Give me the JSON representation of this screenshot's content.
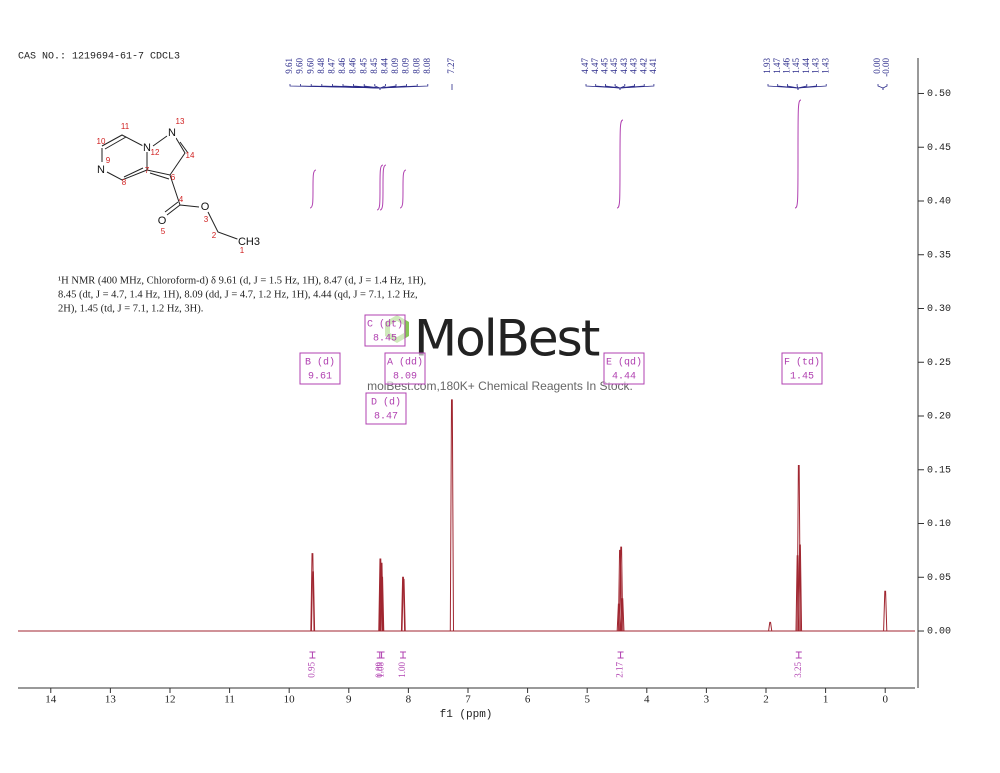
{
  "header": {
    "cas": "CAS NO.: 1219694-61-7 CDCL3"
  },
  "structure": {
    "atoms": [
      "N",
      "N",
      "N",
      "O",
      "O",
      "CH3"
    ],
    "numbers": [
      "1",
      "2",
      "3",
      "4",
      "5",
      "6",
      "7",
      "8",
      "9",
      "10",
      "11",
      "12",
      "13",
      "14"
    ]
  },
  "nmr_text": [
    "¹H NMR (400 MHz, Chloroform-d) δ 9.61 (d, J = 1.5 Hz, 1H), 8.47 (d, J = 1.4 Hz, 1H),",
    "8.45 (dt, J = 4.7, 1.4 Hz, 1H), 8.09 (dd, J = 4.7, 1.2 Hz, 1H), 4.44 (qd, J = 7.1, 1.2 Hz,",
    "2H), 1.45 (td, J = 7.1, 1.2 Hz, 3H)."
  ],
  "watermark": {
    "brand": "MolBest",
    "tagline": "molBest.com,180K+ Chemical Reagents In Stock."
  },
  "chart_data": {
    "type": "spectrum",
    "xlabel": "f1 (ppm)",
    "color": "#a02630",
    "xlim": [
      14.55,
      -0.5
    ],
    "xticks": [
      14,
      13,
      12,
      11,
      10,
      9,
      8,
      7,
      6,
      5,
      4,
      3,
      2,
      1,
      0
    ],
    "ylim": [
      -0.053,
      0.533
    ],
    "yticks": [
      {
        "value": 0,
        "label": "0.00"
      },
      0.05,
      {
        "value": 0.1,
        "label": "0.10"
      },
      0.15,
      {
        "value": 0.2,
        "label": "0.20"
      },
      0.25,
      {
        "value": 0.3,
        "label": "0.30"
      },
      0.35,
      {
        "value": 0.4,
        "label": "0.40"
      },
      0.45,
      {
        "value": 0.5,
        "label": "0.50"
      }
    ],
    "x": [
      9.61,
      9.6,
      8.47,
      8.46,
      8.45,
      8.44,
      8.09,
      8.08,
      7.27,
      4.47,
      4.45,
      4.43,
      4.41,
      1.93,
      1.47,
      1.45,
      1.43,
      0
    ],
    "values": [
      0.072,
      0.055,
      0.067,
      0.06,
      0.063,
      0.05,
      0.05,
      0.048,
      0.215,
      0.025,
      0.075,
      0.078,
      0.03,
      0.008,
      0.07,
      0.154,
      0.08,
      0.037
    ],
    "peak_label_groups": [
      [
        "9.61",
        "9.60",
        "9.60",
        "8.48",
        "8.47",
        "8.46",
        "8.46",
        "8.45",
        "8.45",
        "8.44",
        "8.09",
        "8.09",
        "8.08",
        "8.08"
      ],
      [
        "7.27"
      ],
      [
        "4.47",
        "4.47",
        "4.45",
        "4.45",
        "4.43",
        "4.43",
        "4.42",
        "4.41"
      ],
      [
        "1.93",
        "1.47",
        "1.46",
        "1.45",
        "1.44",
        "1.43",
        "1.43"
      ],
      [
        "0.00",
        "-0.00"
      ]
    ],
    "multiplets": [
      {
        "name": "B (d)",
        "shift": "9.61"
      },
      {
        "name": "C (dt)",
        "shift": "8.45"
      },
      {
        "name": "A (dd)",
        "shift": "8.09"
      },
      {
        "name": "D (d)",
        "shift": "8.47"
      },
      {
        "name": "E (qd)",
        "shift": "4.44"
      },
      {
        "name": "F (td)",
        "shift": "1.45"
      }
    ],
    "integrals": {
      "x": [
        9.61,
        8.48,
        8.45,
        8.09,
        4.44,
        1.45
      ],
      "values": [
        0.95,
        0.89,
        1.08,
        1,
        2.17,
        3.25
      ],
      "value_labels": [
        "0.95",
        "0.89",
        "1.08",
        "1.00",
        "2.17",
        "3.25"
      ]
    }
  }
}
